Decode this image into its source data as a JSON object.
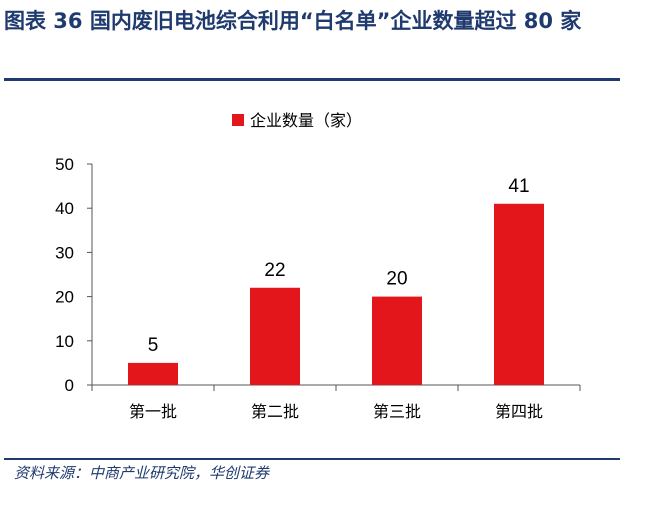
{
  "figure": {
    "title": "图表 36  国内废旧电池综合利用“白名单”企业数量超过 80 家",
    "source": "资料来源：中商产业研究院，华创证券"
  },
  "colors": {
    "bar": "#e3161c",
    "title": "#1f3a6e",
    "axis": "#555555",
    "text": "#000000"
  },
  "chart_data": {
    "type": "bar",
    "categories": [
      "第一批",
      "第二批",
      "第三批",
      "第四批"
    ],
    "series": [
      {
        "name": "企业数量（家）",
        "values": [
          5,
          22,
          20,
          41
        ]
      }
    ],
    "ylim": [
      0,
      50
    ],
    "yticks": [
      0,
      10,
      20,
      30,
      40,
      50
    ],
    "legend_position": "top-center",
    "grid": false,
    "data_labels": true
  }
}
